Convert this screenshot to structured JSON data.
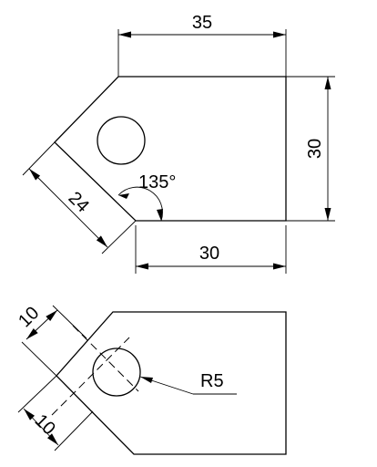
{
  "top_view": {
    "dim_top_width": "35",
    "dim_right_height": "30",
    "dim_bottom_width": "30",
    "dim_slant_length": "24",
    "dim_angle": "135°"
  },
  "bottom_view": {
    "dim_upper_offset": "10",
    "dim_lower_offset": "10",
    "dim_radius": "R5"
  }
}
